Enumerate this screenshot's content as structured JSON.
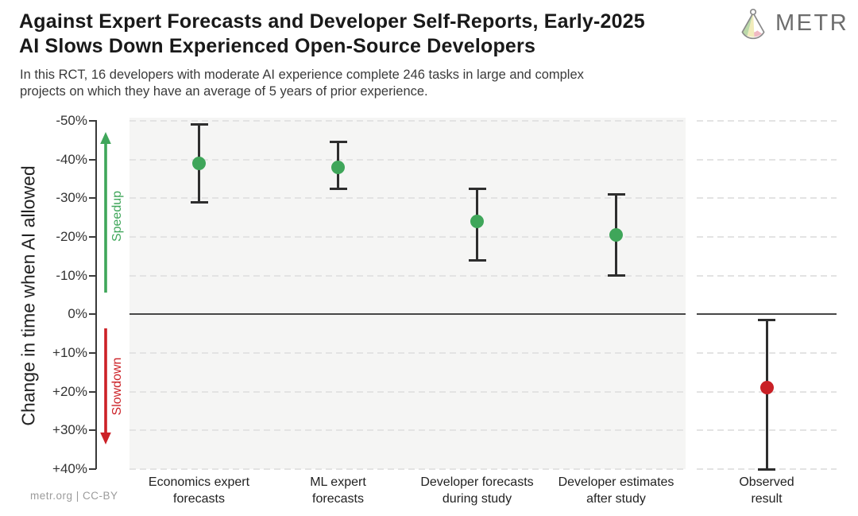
{
  "header": {
    "title": "Against Expert Forecasts and Developer Self-Reports, Early-2025\nAI Slows Down Experienced Open-Source Developers",
    "subtitle": "In this RCT, 16 developers with moderate AI experience complete 246 tasks in large and complex\nprojects on which they have an average of 5 years of prior experience.",
    "logo_text": "METR"
  },
  "footer": {
    "credit": "metr.org | CC-BY"
  },
  "colors": {
    "speedup_green": "#3fa65a",
    "slowdown_red": "#cc2127",
    "error_bar": "#2e2e2e",
    "panel_gray": "#f5f5f4",
    "gridline": "#e3e3e3",
    "zero_line": "#474747"
  },
  "chart_data": {
    "type": "scatter",
    "title": "Against Expert Forecasts and Developer Self-Reports, Early-2025 AI Slows Down Experienced Open-Source Developers",
    "ylabel": "Change in time when AI allowed",
    "xlabel": "",
    "ylim_top_to_bottom": [
      -50.8,
      40
    ],
    "grid": "dashed horizontal",
    "y_ticks": [
      {
        "label": "-50%",
        "value": -50
      },
      {
        "label": "-40%",
        "value": -40
      },
      {
        "label": "-30%",
        "value": -30
      },
      {
        "label": "-20%",
        "value": -20
      },
      {
        "label": "-10%",
        "value": -10
      },
      {
        "label": "0%",
        "value": 0
      },
      {
        "label": "+10%",
        "value": 10
      },
      {
        "label": "+20%",
        "value": 20
      },
      {
        "label": "+30%",
        "value": 30
      },
      {
        "label": "+40%",
        "value": 40
      }
    ],
    "annotations": {
      "speedup": "Speedup",
      "slowdown": "Slowdown"
    },
    "panels": [
      {
        "name": "forecasts",
        "background": "#f5f5f4",
        "points": [
          {
            "label": "Economics expert\nforecasts",
            "value": -39,
            "ci": [
              -49,
              -29
            ],
            "color": "#3fa65a"
          },
          {
            "label": "ML expert\nforecasts",
            "value": -38,
            "ci": [
              -44.5,
              -32.5
            ],
            "color": "#3fa65a"
          },
          {
            "label": "Developer forecasts\nduring study",
            "value": -24,
            "ci": [
              -32.5,
              -14
            ],
            "color": "#3fa65a"
          },
          {
            "label": "Developer estimates\nafter study",
            "value": -20.5,
            "ci": [
              -31,
              -10
            ],
            "color": "#3fa65a"
          }
        ]
      },
      {
        "name": "observed",
        "background": "#ffffff",
        "points": [
          {
            "label": "Observed\nresult",
            "value": 19,
            "ci": [
              1.5,
              40
            ],
            "color": "#c92026"
          }
        ]
      }
    ]
  }
}
